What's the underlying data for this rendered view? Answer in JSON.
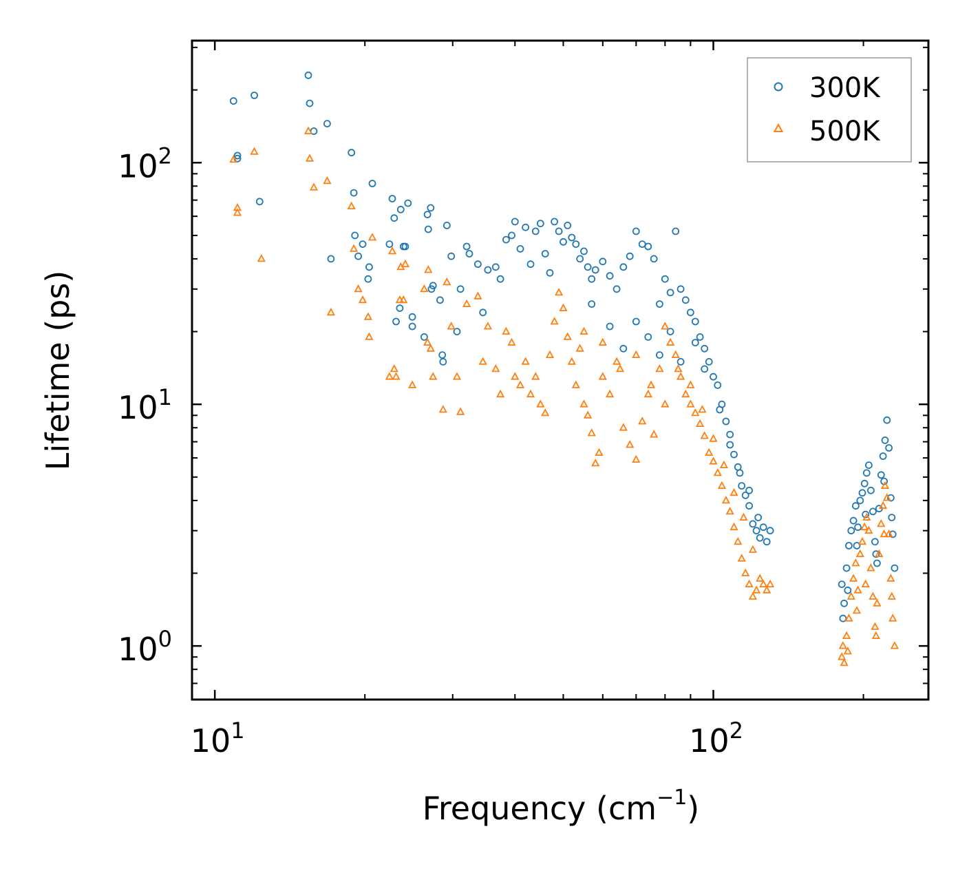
{
  "chart_data": {
    "type": "scatter",
    "xscale": "log",
    "yscale": "log",
    "xlabel": "Frequency (cm",
    "xlabel_sup": "−1",
    "xlabel_close": ")",
    "ylabel": "Lifetime (ps)",
    "xlim": [
      9,
      270
    ],
    "ylim": [
      0.6,
      320
    ],
    "x_ticks": [
      {
        "value": 10,
        "base": "10",
        "exp": "1"
      },
      {
        "value": 100,
        "base": "10",
        "exp": "2"
      }
    ],
    "y_ticks": [
      {
        "value": 1,
        "base": "10",
        "exp": "0"
      },
      {
        "value": 10,
        "base": "10",
        "exp": "1"
      },
      {
        "value": 100,
        "base": "10",
        "exp": "2"
      }
    ],
    "legend_position": "top-right",
    "series": [
      {
        "name": "300K",
        "marker": "circle",
        "color": "#1f77b4",
        "points": [
          [
            10.9,
            180
          ],
          [
            11.1,
            107
          ],
          [
            11.1,
            104
          ],
          [
            12.0,
            190
          ],
          [
            12.3,
            69
          ],
          [
            15.4,
            230
          ],
          [
            15.5,
            176
          ],
          [
            15.8,
            135
          ],
          [
            16.8,
            145
          ],
          [
            17.1,
            40
          ],
          [
            18.8,
            110
          ],
          [
            19.0,
            75
          ],
          [
            19.1,
            50
          ],
          [
            19.4,
            41
          ],
          [
            19.8,
            46
          ],
          [
            20.3,
            33
          ],
          [
            20.4,
            37
          ],
          [
            20.7,
            82
          ],
          [
            22.4,
            46
          ],
          [
            22.7,
            71
          ],
          [
            22.9,
            59
          ],
          [
            23.1,
            22
          ],
          [
            23.5,
            25
          ],
          [
            23.6,
            64
          ],
          [
            23.9,
            45
          ],
          [
            24.1,
            45
          ],
          [
            24.4,
            68
          ],
          [
            24.9,
            23
          ],
          [
            24.9,
            21
          ],
          [
            26.3,
            19
          ],
          [
            26.7,
            61
          ],
          [
            26.8,
            53
          ],
          [
            27.1,
            65
          ],
          [
            27.2,
            30
          ],
          [
            27.4,
            31
          ],
          [
            28.3,
            27
          ],
          [
            28.6,
            16
          ],
          [
            28.7,
            15
          ],
          [
            29.2,
            55
          ],
          [
            29.8,
            41
          ],
          [
            30.6,
            20
          ],
          [
            31.1,
            30
          ],
          [
            32.0,
            45
          ],
          [
            32.4,
            42
          ],
          [
            33.7,
            38
          ],
          [
            34.5,
            24
          ],
          [
            35.3,
            36
          ],
          [
            36.6,
            37
          ],
          [
            37.4,
            33
          ],
          [
            38.4,
            48
          ],
          [
            39.4,
            50
          ],
          [
            40.0,
            57
          ],
          [
            41.0,
            44
          ],
          [
            42.0,
            54
          ],
          [
            43.0,
            38
          ],
          [
            44.0,
            52
          ],
          [
            45.0,
            56
          ],
          [
            46.0,
            42
          ],
          [
            47.0,
            35
          ],
          [
            48.0,
            57
          ],
          [
            49.0,
            52
          ],
          [
            50.0,
            47
          ],
          [
            51.0,
            55
          ],
          [
            52.0,
            49
          ],
          [
            53.0,
            46
          ],
          [
            54.0,
            40
          ],
          [
            55.0,
            43
          ],
          [
            56.0,
            37
          ],
          [
            57.0,
            33
          ],
          [
            58.0,
            36
          ],
          [
            60.0,
            39
          ],
          [
            62.0,
            34
          ],
          [
            64.0,
            30
          ],
          [
            66.0,
            37
          ],
          [
            68.0,
            41
          ],
          [
            70.0,
            52
          ],
          [
            72.0,
            46
          ],
          [
            74.0,
            45
          ],
          [
            76.0,
            40
          ],
          [
            78.0,
            26
          ],
          [
            80.0,
            33
          ],
          [
            82.0,
            29
          ],
          [
            84.0,
            52
          ],
          [
            86.0,
            30
          ],
          [
            88.0,
            27
          ],
          [
            90.0,
            24
          ],
          [
            92.0,
            22
          ],
          [
            94.0,
            19
          ],
          [
            96.0,
            17
          ],
          [
            98.0,
            15
          ],
          [
            100.0,
            13
          ],
          [
            102.0,
            12
          ],
          [
            104.0,
            10
          ],
          [
            106.0,
            8.5
          ],
          [
            108.0,
            7.5
          ],
          [
            110.0,
            6.2
          ],
          [
            112.0,
            5.5
          ],
          [
            114.0,
            4.6
          ],
          [
            116.0,
            4.2
          ],
          [
            118.0,
            3.8
          ],
          [
            120.0,
            3.2
          ],
          [
            122.0,
            3.0
          ],
          [
            124.0,
            2.8
          ],
          [
            126.0,
            3.1
          ],
          [
            128.0,
            2.7
          ],
          [
            130.0,
            3.0
          ],
          [
            57.0,
            26
          ],
          [
            62.0,
            21
          ],
          [
            66.0,
            17
          ],
          [
            70.0,
            22
          ],
          [
            74.0,
            19
          ],
          [
            78.0,
            16
          ],
          [
            82.0,
            20
          ],
          [
            86.0,
            15
          ],
          [
            92.0,
            18
          ],
          [
            96.0,
            14
          ],
          [
            103.0,
            9.5
          ],
          [
            108.0,
            6.8
          ],
          [
            113.0,
            5.2
          ],
          [
            118.0,
            4.4
          ],
          [
            123.0,
            3.4
          ],
          [
            181.0,
            1.8
          ],
          [
            183.0,
            1.5
          ],
          [
            185.0,
            2.1
          ],
          [
            187.0,
            2.6
          ],
          [
            189.0,
            3.0
          ],
          [
            191.0,
            3.3
          ],
          [
            193.0,
            3.8
          ],
          [
            195.0,
            3.1
          ],
          [
            197.0,
            4.0
          ],
          [
            199.0,
            4.3
          ],
          [
            201.0,
            4.7
          ],
          [
            203.0,
            5.2
          ],
          [
            205.0,
            5.6
          ],
          [
            207.0,
            4.4
          ],
          [
            209.0,
            3.6
          ],
          [
            211.0,
            2.7
          ],
          [
            213.0,
            2.2
          ],
          [
            215.0,
            3.7
          ],
          [
            217.0,
            5.1
          ],
          [
            219.0,
            6.1
          ],
          [
            221.0,
            7.1
          ],
          [
            223.0,
            8.6
          ],
          [
            225.0,
            6.6
          ],
          [
            227.0,
            4.1
          ],
          [
            229.0,
            2.9
          ],
          [
            231.0,
            2.1
          ],
          [
            182.0,
            1.3
          ],
          [
            186.0,
            1.7
          ],
          [
            194.0,
            2.6
          ],
          [
            202.0,
            3.5
          ],
          [
            212.0,
            2.4
          ],
          [
            220.0,
            4.8
          ],
          [
            228.0,
            3.4
          ]
        ]
      },
      {
        "name": "500K",
        "marker": "triangle",
        "color": "#ff7f0e",
        "points": [
          [
            10.9,
            103
          ],
          [
            11.1,
            65
          ],
          [
            11.1,
            62
          ],
          [
            12.0,
            111
          ],
          [
            12.4,
            40
          ],
          [
            15.4,
            135
          ],
          [
            15.5,
            104
          ],
          [
            15.8,
            79
          ],
          [
            16.8,
            84
          ],
          [
            17.1,
            24
          ],
          [
            18.8,
            66
          ],
          [
            19.0,
            44
          ],
          [
            19.4,
            30
          ],
          [
            19.8,
            27
          ],
          [
            20.3,
            23
          ],
          [
            20.4,
            19
          ],
          [
            20.7,
            49
          ],
          [
            22.4,
            13
          ],
          [
            22.7,
            43
          ],
          [
            22.9,
            14
          ],
          [
            23.1,
            13
          ],
          [
            23.5,
            27
          ],
          [
            23.6,
            37
          ],
          [
            23.9,
            27
          ],
          [
            24.1,
            38
          ],
          [
            24.9,
            12
          ],
          [
            26.3,
            30
          ],
          [
            26.7,
            18
          ],
          [
            26.8,
            36
          ],
          [
            27.1,
            17
          ],
          [
            27.4,
            13
          ],
          [
            28.7,
            9.5
          ],
          [
            29.2,
            32
          ],
          [
            29.8,
            21
          ],
          [
            30.6,
            13
          ],
          [
            31.1,
            9.3
          ],
          [
            32.0,
            26
          ],
          [
            33.7,
            28
          ],
          [
            34.5,
            15
          ],
          [
            35.3,
            21
          ],
          [
            36.6,
            14
          ],
          [
            37.4,
            11
          ],
          [
            38.4,
            20
          ],
          [
            39.4,
            18
          ],
          [
            40.0,
            13
          ],
          [
            41.0,
            12
          ],
          [
            42.0,
            15
          ],
          [
            43.0,
            11
          ],
          [
            44.0,
            13
          ],
          [
            45.0,
            10
          ],
          [
            46.0,
            9.2
          ],
          [
            47.0,
            16
          ],
          [
            48.0,
            22
          ],
          [
            49.0,
            29
          ],
          [
            50.0,
            25
          ],
          [
            51.0,
            19
          ],
          [
            52.0,
            15
          ],
          [
            53.0,
            12
          ],
          [
            54.0,
            17
          ],
          [
            55.0,
            10
          ],
          [
            56.0,
            9.0
          ],
          [
            57.0,
            7.6
          ],
          [
            58.0,
            5.7
          ],
          [
            59.0,
            6.3
          ],
          [
            60.0,
            13
          ],
          [
            62.0,
            11
          ],
          [
            64.0,
            15
          ],
          [
            66.0,
            8.0
          ],
          [
            68.0,
            6.8
          ],
          [
            70.0,
            5.9
          ],
          [
            72.0,
            8.5
          ],
          [
            74.0,
            11
          ],
          [
            76.0,
            7.5
          ],
          [
            78.0,
            14
          ],
          [
            80.0,
            21
          ],
          [
            82.0,
            18
          ],
          [
            84.0,
            16
          ],
          [
            86.0,
            13
          ],
          [
            88.0,
            11
          ],
          [
            90.0,
            10
          ],
          [
            92.0,
            9.2
          ],
          [
            94.0,
            8.3
          ],
          [
            96.0,
            7.4
          ],
          [
            98.0,
            6.3
          ],
          [
            100.0,
            5.8
          ],
          [
            102.0,
            5.2
          ],
          [
            104.0,
            4.6
          ],
          [
            106.0,
            4.0
          ],
          [
            108.0,
            3.6
          ],
          [
            110.0,
            3.1
          ],
          [
            112.0,
            2.7
          ],
          [
            114.0,
            2.3
          ],
          [
            116.0,
            2.0
          ],
          [
            118.0,
            1.8
          ],
          [
            120.0,
            1.6
          ],
          [
            122.0,
            1.7
          ],
          [
            124.0,
            1.9
          ],
          [
            126.0,
            1.8
          ],
          [
            128.0,
            1.7
          ],
          [
            130.0,
            1.8
          ],
          [
            55.0,
            20
          ],
          [
            60.0,
            18
          ],
          [
            65.0,
            14
          ],
          [
            70.0,
            16
          ],
          [
            75.0,
            12
          ],
          [
            80.0,
            10
          ],
          [
            85.0,
            14
          ],
          [
            90.0,
            12
          ],
          [
            95.0,
            9.5
          ],
          [
            100.0,
            7.2
          ],
          [
            105.0,
            5.6
          ],
          [
            110.0,
            4.3
          ],
          [
            115.0,
            3.4
          ],
          [
            120.0,
            2.5
          ],
          [
            181.0,
            0.9
          ],
          [
            183.0,
            0.85
          ],
          [
            185.0,
            1.1
          ],
          [
            187.0,
            1.3
          ],
          [
            189.0,
            1.6
          ],
          [
            191.0,
            1.9
          ],
          [
            193.0,
            2.2
          ],
          [
            195.0,
            1.7
          ],
          [
            197.0,
            2.4
          ],
          [
            199.0,
            2.7
          ],
          [
            201.0,
            3.1
          ],
          [
            203.0,
            3.4
          ],
          [
            205.0,
            3.0
          ],
          [
            207.0,
            2.1
          ],
          [
            209.0,
            1.6
          ],
          [
            211.0,
            1.2
          ],
          [
            213.0,
            1.5
          ],
          [
            215.0,
            2.4
          ],
          [
            217.0,
            3.2
          ],
          [
            219.0,
            3.8
          ],
          [
            221.0,
            4.6
          ],
          [
            223.0,
            4.1
          ],
          [
            225.0,
            2.9
          ],
          [
            227.0,
            1.9
          ],
          [
            229.0,
            1.3
          ],
          [
            231.0,
            1.0
          ],
          [
            182.0,
            1.0
          ],
          [
            186.0,
            0.95
          ],
          [
            194.0,
            1.4
          ],
          [
            202.0,
            1.8
          ],
          [
            212.0,
            1.1
          ],
          [
            220.0,
            2.9
          ],
          [
            228.0,
            1.6
          ]
        ]
      }
    ]
  }
}
